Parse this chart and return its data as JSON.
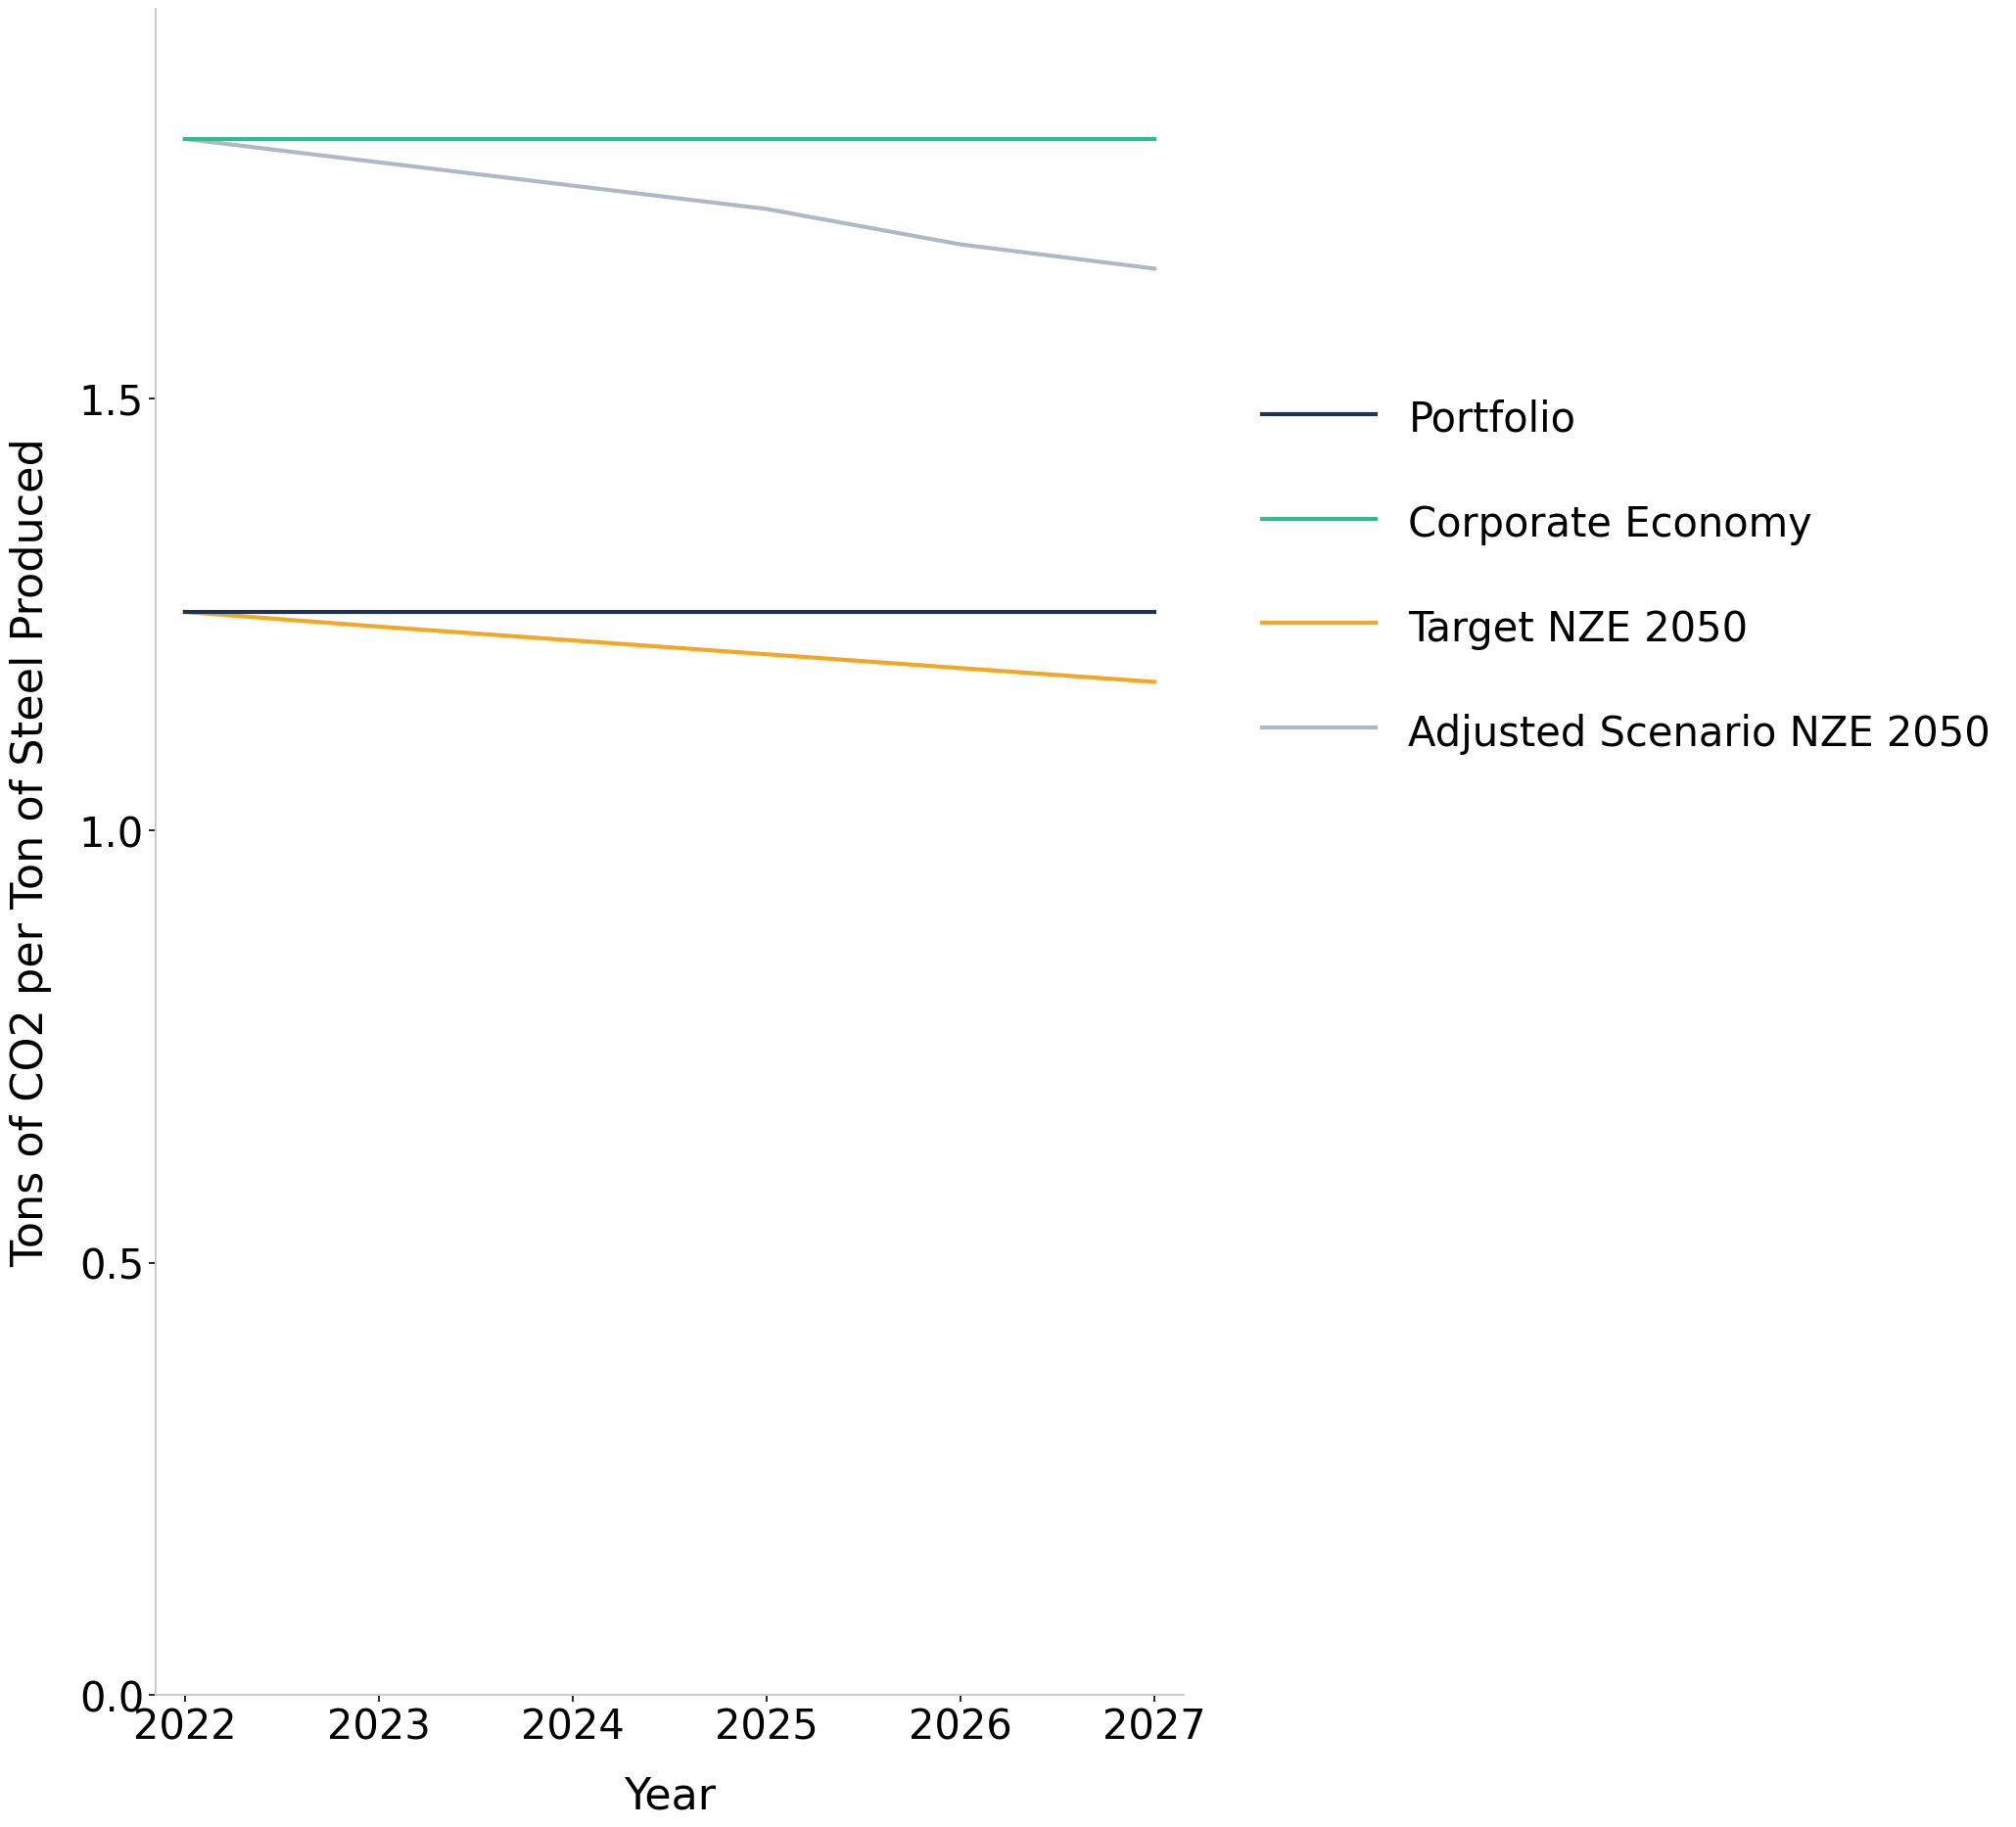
{
  "years": [
    2022,
    2023,
    2024,
    2025,
    2026,
    2027
  ],
  "portfolio": [
    1.253,
    1.253,
    1.253,
    1.253,
    1.253,
    1.253
  ],
  "corporate_economy": [
    1.8,
    1.8,
    1.8,
    1.8,
    1.8,
    1.8
  ],
  "target_nze": [
    1.253,
    1.236,
    1.22,
    1.204,
    1.188,
    1.172
  ],
  "adjusted_scenario": [
    1.8,
    1.773,
    1.746,
    1.719,
    1.678,
    1.65
  ],
  "colors": {
    "portfolio": "#1f3352",
    "corporate_economy": "#2bbf8e",
    "target_nze": "#f5a623",
    "adjusted_scenario": "#b0b8c8"
  },
  "legend_labels": {
    "portfolio": "Portfolio",
    "corporate_economy": "Corporate Economy",
    "target_nze": "Target NZE 2050",
    "adjusted_scenario": "Adjusted Scenario NZE 2050"
  },
  "xlabel": "Year",
  "ylabel": "Tons of CO2 per Ton of Steel Produced",
  "ylim": [
    0.0,
    1.95
  ],
  "yticks": [
    0.0,
    0.5,
    1.0,
    1.5
  ],
  "xlim": [
    2021.85,
    2027.15
  ],
  "xticks": [
    2022,
    2023,
    2024,
    2025,
    2026,
    2027
  ],
  "line_width": 3.0,
  "background_color": "#ffffff",
  "axis_color": "#cccccc",
  "label_fontsize": 32,
  "tick_fontsize": 30,
  "legend_fontsize": 30
}
